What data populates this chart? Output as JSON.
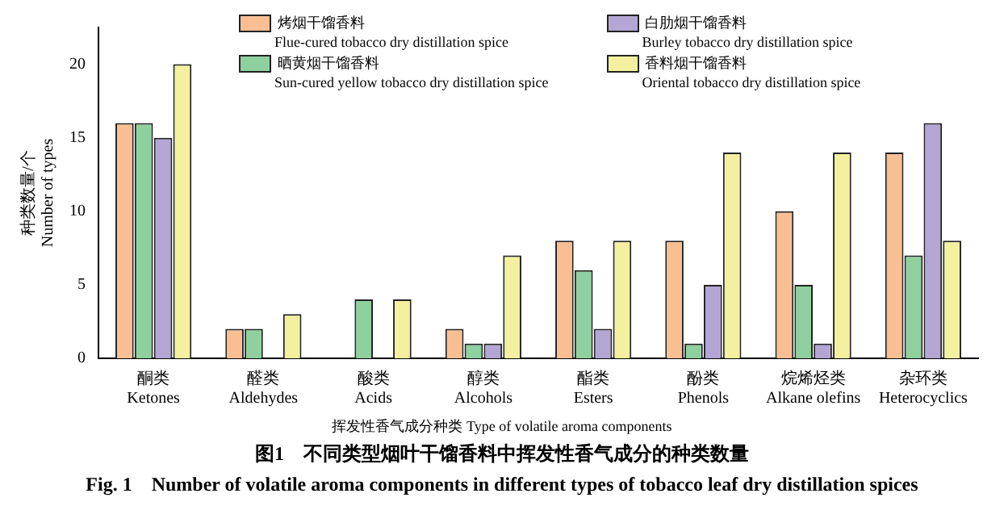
{
  "chart_data": {
    "type": "bar",
    "title": "图1　不同类型烟叶干馏香料中挥发性香气成分的种类数量\nFig. 1　Number of volatile aroma components in different types of tobacco leaf dry distillation spices",
    "xlabel": "挥发性香气成分种类  Type of volatile aroma components",
    "ylabel": "种类数量/个\nNumber of types",
    "categories": [
      "酮类\nKetones",
      "醛类\nAldehydes",
      "酸类\nAcids",
      "醇类\nAlcohols",
      "酯类\nEsters",
      "酚类\nPhenols",
      "烷烯烃类\nAlkane olefins",
      "杂环类\nHeterocyclics"
    ],
    "series": [
      {
        "name": "烤烟干馏香料\nFlue-cured tobacco dry distillation spice",
        "color": "#f9bf93",
        "values": [
          16,
          2,
          0,
          2,
          8,
          8,
          10,
          14
        ]
      },
      {
        "name": "晒黄烟干馏香料\nSun-cured yellow tobacco dry distillation spice",
        "color": "#8fd19e",
        "values": [
          16,
          2,
          4,
          1,
          6,
          1,
          5,
          7
        ]
      },
      {
        "name": "白肋烟干馏香料\nBurley tobacco dry distillation spice",
        "color": "#b3a6d4",
        "values": [
          15,
          0,
          0,
          1,
          2,
          5,
          1,
          16
        ]
      },
      {
        "name": "香料烟干馏香料\nOriental tobacco dry distillation spice",
        "color": "#f3f0a0",
        "values": [
          20,
          3,
          4,
          7,
          8,
          14,
          14,
          8
        ]
      }
    ],
    "ylim": [
      0,
      22.5
    ],
    "yticks": [
      0,
      5,
      10,
      15,
      20
    ],
    "grid": false,
    "legend": "top"
  }
}
